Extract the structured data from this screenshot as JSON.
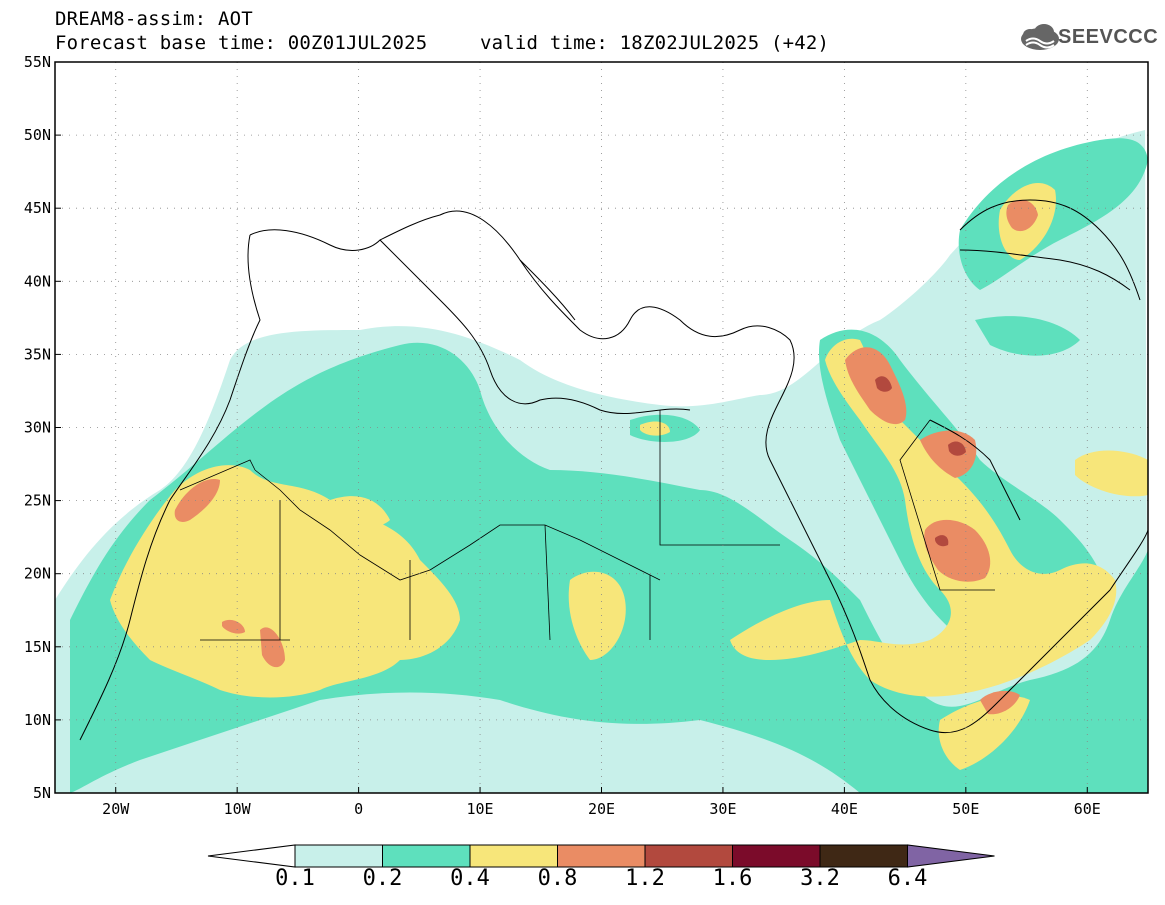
{
  "header": {
    "title": "DREAM8-assim: AOT",
    "base_time": "Forecast base time: 00Z01JUL2025",
    "valid_time": "valid time: 18Z02JUL2025 (+42)"
  },
  "logo": {
    "text": "SEEVCCC",
    "icon": "cloud-icon",
    "color": "#555555"
  },
  "map": {
    "lon_range": [
      -25,
      65
    ],
    "lat_range": [
      5,
      55
    ],
    "lat_ticks": [
      {
        "value": 55,
        "label": "55N"
      },
      {
        "value": 50,
        "label": "50N"
      },
      {
        "value": 45,
        "label": "45N"
      },
      {
        "value": 40,
        "label": "40N"
      },
      {
        "value": 35,
        "label": "35N"
      },
      {
        "value": 30,
        "label": "30N"
      },
      {
        "value": 25,
        "label": "25N"
      },
      {
        "value": 20,
        "label": "20N"
      },
      {
        "value": 15,
        "label": "15N"
      },
      {
        "value": 10,
        "label": "10N"
      },
      {
        "value": 5,
        "label": "5N"
      }
    ],
    "lon_ticks": [
      {
        "value": -20,
        "label": "20W"
      },
      {
        "value": -10,
        "label": "10W"
      },
      {
        "value": 0,
        "label": "0"
      },
      {
        "value": 10,
        "label": "10E"
      },
      {
        "value": 20,
        "label": "20E"
      },
      {
        "value": 30,
        "label": "30E"
      },
      {
        "value": 40,
        "label": "40E"
      },
      {
        "value": 50,
        "label": "50E"
      },
      {
        "value": 60,
        "label": "60E"
      }
    ]
  },
  "colorbar": {
    "labels": [
      "0.1",
      "0.2",
      "0.4",
      "0.8",
      "1.2",
      "1.6",
      "3.2",
      "6.4"
    ],
    "colors": [
      "#ffffff",
      "#c8f0ea",
      "#5ee0bd",
      "#f7e67a",
      "#ea8c64",
      "#b2493e",
      "#7b0b2a",
      "#3f2815",
      "#8064a4"
    ]
  },
  "aot_levels": [
    {
      "value": 0.1,
      "color": "#c8f0ea"
    },
    {
      "value": 0.2,
      "color": "#5ee0bd"
    },
    {
      "value": 0.4,
      "color": "#f7e67a"
    },
    {
      "value": 0.8,
      "color": "#ea8c64"
    },
    {
      "value": 1.2,
      "color": "#b2493e"
    }
  ]
}
